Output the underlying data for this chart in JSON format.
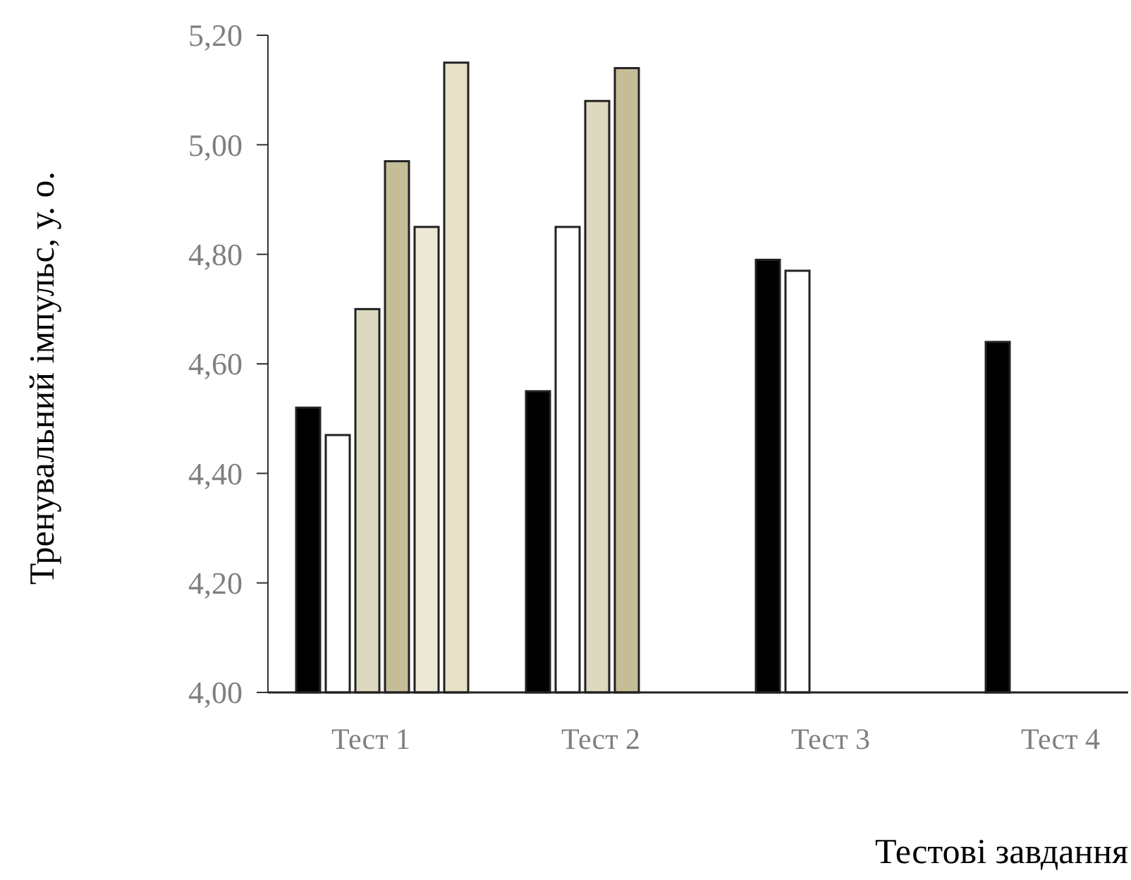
{
  "chart_data": {
    "type": "bar",
    "xlabel": "Тестові завдання",
    "ylabel": "Тренувальний імпульс, у. о.",
    "categories": [
      "Тест 1",
      "Тест 2",
      "Тест 3",
      "Тест 4"
    ],
    "series": [
      {
        "color": "#000000",
        "values": [
          4.52,
          4.55,
          4.79,
          4.64
        ]
      },
      {
        "color": "#ffffff",
        "values": [
          4.47,
          4.85,
          4.77,
          null
        ]
      },
      {
        "color": "#ddd8c0",
        "values": [
          4.7,
          5.08,
          null,
          null
        ]
      },
      {
        "color": "#c5bd98",
        "values": [
          4.97,
          5.14,
          null,
          null
        ]
      },
      {
        "color": "#ece8d8",
        "values": [
          4.85,
          null,
          null,
          null
        ]
      },
      {
        "color": "#e6e0c8",
        "values": [
          5.15,
          null,
          null,
          null
        ]
      }
    ],
    "ylim": [
      4,
      5.2
    ],
    "yticks": [
      {
        "value": 4,
        "label": "4,00"
      },
      {
        "value": 4.2,
        "label": "4,20"
      },
      {
        "value": 4.4,
        "label": "4,40"
      },
      {
        "value": 4.6,
        "label": "4,60"
      },
      {
        "value": 4.8,
        "label": "4,80"
      },
      {
        "value": 5,
        "label": "5,00"
      },
      {
        "value": 5.2,
        "label": "5,20"
      }
    ]
  }
}
